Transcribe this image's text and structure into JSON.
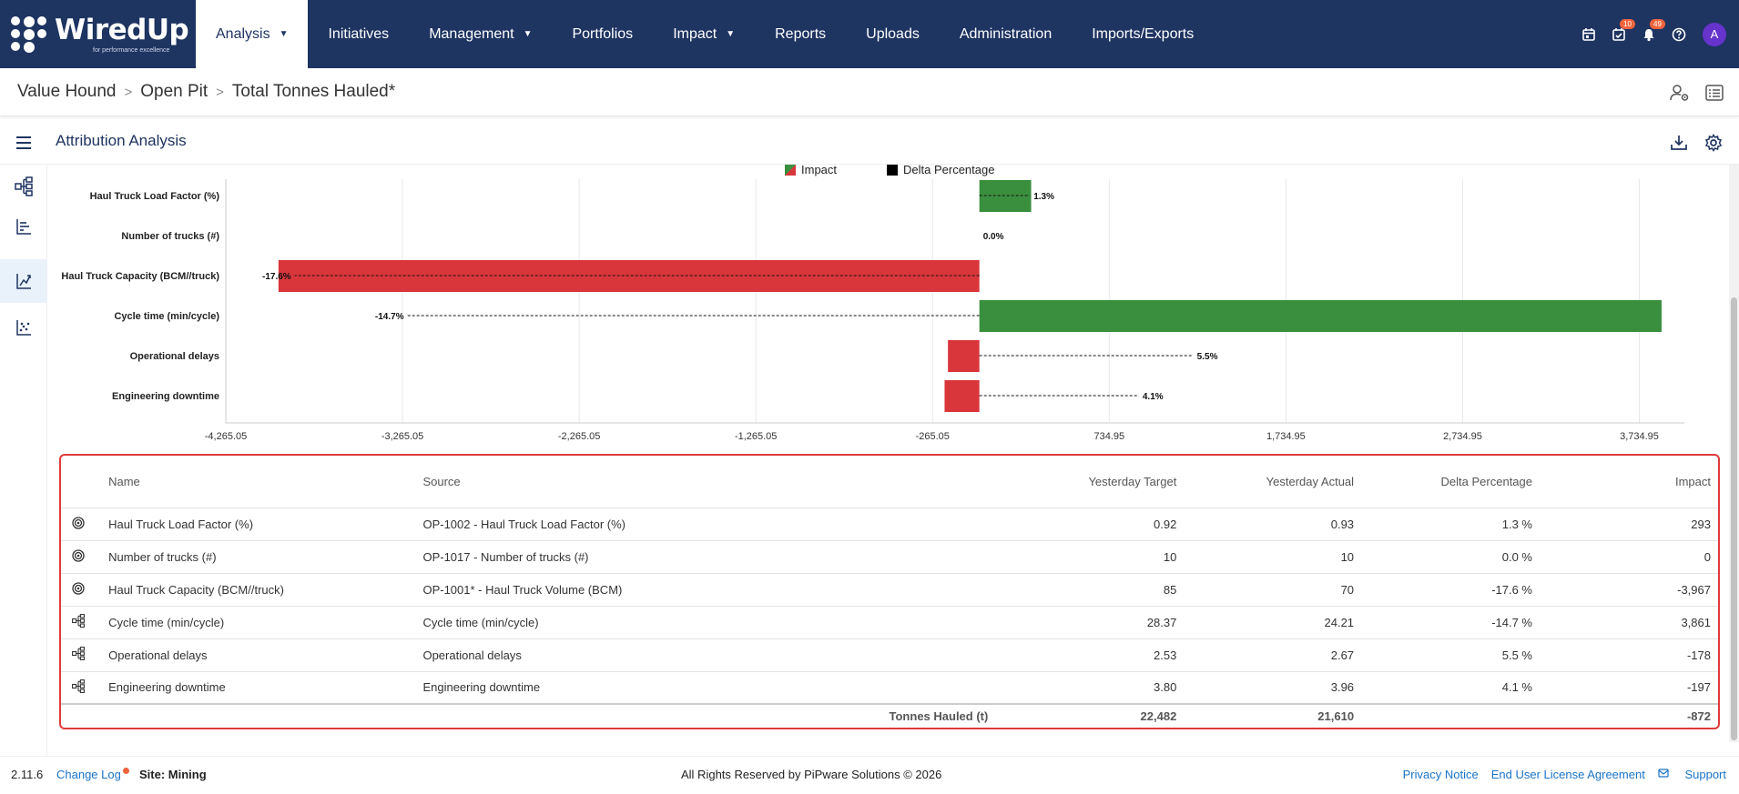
{
  "app": {
    "brand": "WiredUp",
    "tagline": "for performance excellence"
  },
  "nav": {
    "items": [
      {
        "label": "Analysis",
        "caret": true,
        "active": true
      },
      {
        "label": "Initiatives",
        "caret": false
      },
      {
        "label": "Management",
        "caret": true
      },
      {
        "label": "Portfolios",
        "caret": false
      },
      {
        "label": "Impact",
        "caret": true
      },
      {
        "label": "Reports",
        "caret": false
      },
      {
        "label": "Uploads",
        "caret": false
      },
      {
        "label": "Administration",
        "caret": false
      },
      {
        "label": "Imports/Exports",
        "caret": false
      }
    ],
    "tasks_badge": "10",
    "notifications_badge": "49",
    "avatar": "A"
  },
  "breadcrumb": {
    "items": [
      "Value Hound",
      "Open Pit",
      "Total Tonnes Hauled*"
    ]
  },
  "page": {
    "title": "Attribution Analysis"
  },
  "chart_data": {
    "type": "bar",
    "orientation": "horizontal",
    "legend": [
      "Impact",
      "Delta Percentage"
    ],
    "categories": [
      "Haul Truck Load Factor (%)",
      "Number of trucks (#)",
      "Haul Truck Capacity (BCM//truck)",
      "Cycle time (min/cycle)",
      "Operational delays",
      "Engineering downtime"
    ],
    "impact": [
      293,
      0,
      -3967,
      3861,
      -178,
      -197
    ],
    "delta_percentage": [
      1.3,
      0.0,
      -17.6,
      -14.7,
      5.5,
      4.1
    ],
    "delta_labels": [
      "1.3%",
      "0.0%",
      "-17.6%",
      "-14.7%",
      "5.5%",
      "4.1%"
    ],
    "xticks": [
      -4265.05,
      -3265.05,
      -2265.05,
      -1265.05,
      -265.05,
      734.95,
      1734.95,
      2734.95,
      3734.95
    ],
    "xtick_labels": [
      "-4,265.05",
      "-3,265.05",
      "-2,265.05",
      "-1,265.05",
      "-265.05",
      "734.95",
      "1,734.95",
      "2,734.95",
      "3,734.95"
    ],
    "xlim": [
      -4265.05,
      3990
    ],
    "colors": {
      "positive": "#3a8f3e",
      "negative": "#d9363b"
    }
  },
  "table": {
    "headers": {
      "name": "Name",
      "source": "Source",
      "target": "Yesterday Target",
      "actual": "Yesterday Actual",
      "delta": "Delta Percentage",
      "impact": "Impact"
    },
    "rows": [
      {
        "icon": "target",
        "name": "Haul Truck Load Factor (%)",
        "source": "OP-1002 - Haul Truck Load Factor (%)",
        "target": "0.92",
        "actual": "0.93",
        "delta": "1.3 %",
        "impact": "293"
      },
      {
        "icon": "target",
        "name": "Number of trucks (#)",
        "source": "OP-1017 - Number of trucks (#)",
        "target": "10",
        "actual": "10",
        "delta": "0.0 %",
        "impact": "0"
      },
      {
        "icon": "target",
        "name": "Haul Truck Capacity (BCM//truck)",
        "source": "OP-1001* - Haul Truck Volume (BCM)",
        "target": "85",
        "actual": "70",
        "delta": "-17.6 %",
        "impact": "-3,967"
      },
      {
        "icon": "tree",
        "name": "Cycle time (min/cycle)",
        "source": "Cycle time (min/cycle)",
        "target": "28.37",
        "actual": "24.21",
        "delta": "-14.7 %",
        "impact": "3,861"
      },
      {
        "icon": "tree",
        "name": "Operational delays",
        "source": "Operational delays",
        "target": "2.53",
        "actual": "2.67",
        "delta": "5.5 %",
        "impact": "-178"
      },
      {
        "icon": "tree",
        "name": "Engineering downtime",
        "source": "Engineering downtime",
        "target": "3.80",
        "actual": "3.96",
        "delta": "4.1 %",
        "impact": "-197"
      }
    ],
    "total": {
      "label": "Tonnes Hauled (t)",
      "target": "22,482",
      "actual": "21,610",
      "impact": "-872"
    }
  },
  "footer": {
    "version": "2.11.6",
    "changelog": "Change Log",
    "site": "Site: Mining",
    "copyright": "All Rights Reserved by PiPware Solutions © 2026",
    "privacy": "Privacy Notice",
    "eula": "End User License Agreement",
    "support": "Support"
  }
}
